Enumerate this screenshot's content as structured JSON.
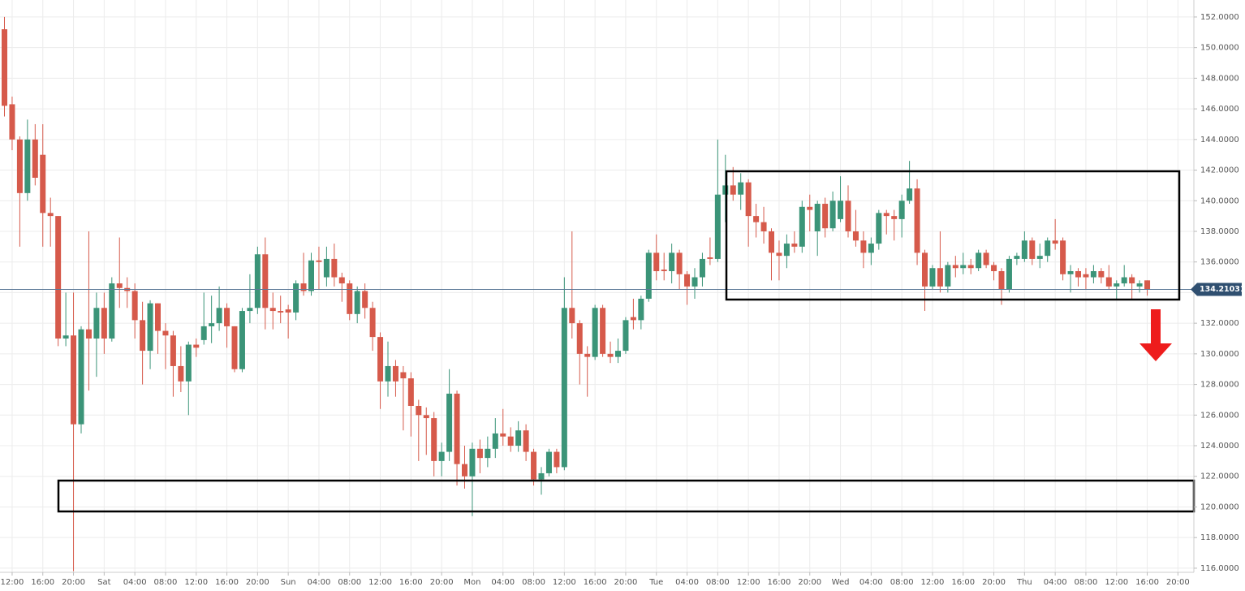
{
  "chart_data": {
    "type": "candlestick",
    "categories": [
      null,
      "12:00",
      null,
      null,
      null,
      "16:00",
      null,
      null,
      null,
      "20:00",
      null,
      null,
      null,
      "Sat",
      null,
      null,
      null,
      "04:00",
      null,
      null,
      null,
      "08:00",
      null,
      null,
      null,
      "12:00",
      null,
      null,
      null,
      "16:00",
      null,
      null,
      null,
      "20:00",
      null,
      null,
      null,
      "Sun",
      null,
      null,
      null,
      "04:00",
      null,
      null,
      null,
      "08:00",
      null,
      null,
      null,
      "12:00",
      null,
      null,
      null,
      "16:00",
      null,
      null,
      null,
      "20:00",
      null,
      null,
      null,
      "Mon",
      null,
      null,
      null,
      "04:00",
      null,
      null,
      null,
      "08:00",
      null,
      null,
      null,
      "12:00",
      null,
      null,
      null,
      "16:00",
      null,
      null,
      null,
      "20:00",
      null,
      null,
      null,
      "Tue",
      null,
      null,
      null,
      "04:00",
      null,
      null,
      null,
      "08:00",
      null,
      null,
      null,
      "12:00",
      null,
      null,
      null,
      "16:00",
      null,
      null,
      null,
      "20:00",
      null,
      null,
      null,
      "Wed",
      null,
      null,
      null,
      "04:00",
      null,
      null,
      null,
      "08:00",
      null,
      null,
      null,
      "12:00",
      null,
      null,
      null,
      "16:00",
      null,
      null,
      null,
      "20:00",
      null,
      null,
      null,
      "Thu",
      null,
      null,
      null,
      "04:00",
      null,
      null,
      null,
      "08:00",
      null,
      null,
      null,
      "12:00",
      null,
      null,
      null,
      "16:00",
      null,
      null,
      null,
      "20:00"
    ],
    "open": [
      151.2,
      146.3,
      144.0,
      140.5,
      144.0,
      143.0,
      139.2,
      139.0,
      131.0,
      131.2,
      125.4,
      131.6,
      131.0,
      133.0,
      131.0,
      134.6,
      134.3,
      134.1,
      132.2,
      130.2,
      133.3,
      131.5,
      131.2,
      129.2,
      128.2,
      130.6,
      130.9,
      131.8,
      132.0,
      133.0,
      131.8,
      129.0,
      132.8,
      133.0,
      136.5,
      133.0,
      132.8,
      132.9,
      132.7,
      134.6,
      134.1,
      136.1,
      135.0,
      136.2,
      135.0,
      134.6,
      132.6,
      134.1,
      133.0,
      131.1,
      128.2,
      129.2,
      128.8,
      128.4,
      126.6,
      126.0,
      125.8,
      123.0,
      123.6,
      127.4,
      122.8,
      122.0,
      123.8,
      123.2,
      123.8,
      124.8,
      124.6,
      124.0,
      125.0,
      123.6,
      121.8,
      122.2,
      123.6,
      122.6,
      133.0,
      132.0,
      130.0,
      129.8,
      133.0,
      130.0,
      129.8,
      130.2,
      132.4,
      132.2,
      133.6,
      136.6,
      135.5,
      135.4,
      136.6,
      135.2,
      134.4,
      135.0,
      136.3,
      136.2,
      140.4,
      141.0,
      140.4,
      141.2,
      139.0,
      138.6,
      138.0,
      136.6,
      136.4,
      137.2,
      137.0,
      139.6,
      138.0,
      139.8,
      138.2,
      138.8,
      140.0,
      138.0,
      137.4,
      136.6,
      137.2,
      139.2,
      139.0,
      138.8,
      140.0,
      140.8,
      136.6,
      134.4,
      135.6,
      134.4,
      135.8,
      135.6,
      135.8,
      135.6,
      136.6,
      135.8,
      135.4,
      134.2,
      136.2,
      136.2,
      137.4,
      136.2,
      136.4,
      137.4,
      137.4,
      135.2,
      135.4,
      135.2,
      135.0,
      135.4,
      135.0,
      134.4,
      134.6,
      135.0,
      134.4,
      134.8,
      null,
      null,
      null,
      null
    ],
    "high": [
      152.0,
      146.8,
      144.2,
      145.3,
      145.0,
      145.0,
      140.2,
      139.0,
      134.0,
      134.0,
      131.8,
      138.0,
      134.0,
      134.0,
      135.0,
      137.6,
      135.0,
      134.6,
      133.4,
      133.5,
      133.3,
      132.0,
      131.5,
      130.5,
      130.8,
      131.0,
      134.0,
      133.8,
      134.4,
      133.3,
      131.8,
      133.0,
      135.2,
      137.0,
      137.6,
      134.0,
      133.8,
      133.2,
      134.8,
      136.6,
      136.6,
      137.0,
      137.0,
      137.2,
      135.3,
      134.8,
      134.4,
      134.6,
      133.4,
      131.4,
      130.8,
      129.6,
      129.2,
      128.8,
      127.0,
      126.5,
      126.2,
      124.2,
      129.0,
      127.6,
      124.0,
      124.2,
      124.4,
      124.6,
      125.8,
      126.4,
      125.2,
      125.6,
      125.4,
      123.8,
      122.6,
      123.8,
      123.8,
      135.0,
      138.0,
      132.2,
      130.5,
      133.2,
      133.2,
      130.8,
      131.0,
      132.4,
      133.6,
      133.8,
      136.8,
      137.8,
      136.6,
      137.2,
      136.8,
      135.4,
      135.6,
      136.6,
      137.6,
      144.0,
      143.0,
      142.2,
      141.8,
      141.4,
      139.8,
      139.6,
      138.2,
      137.4,
      137.8,
      138.0,
      140.0,
      140.4,
      140.0,
      140.2,
      140.6,
      141.6,
      141.0,
      139.4,
      138.0,
      137.6,
      139.4,
      139.4,
      139.4,
      140.4,
      142.6,
      141.4,
      136.8,
      135.8,
      138.0,
      136.0,
      136.4,
      136.6,
      136.2,
      136.8,
      136.8,
      136.0,
      135.6,
      136.4,
      136.6,
      138.0,
      137.6,
      137.2,
      137.6,
      138.8,
      137.6,
      135.8,
      135.6,
      135.6,
      135.8,
      135.6,
      135.8,
      134.8,
      135.8,
      135.2,
      134.8,
      134.8,
      null,
      null,
      null,
      null
    ],
    "low": [
      145.5,
      143.3,
      137.0,
      140.0,
      141.0,
      137.0,
      137.0,
      130.5,
      130.5,
      115.8,
      124.8,
      127.6,
      128.5,
      130.0,
      130.8,
      133.0,
      133.0,
      131.0,
      128.0,
      129.0,
      130.0,
      129.0,
      127.2,
      127.5,
      126.0,
      129.8,
      130.6,
      130.7,
      131.5,
      130.4,
      128.8,
      128.8,
      132.0,
      132.6,
      131.6,
      131.6,
      132.0,
      131.0,
      132.2,
      133.8,
      133.8,
      134.2,
      134.4,
      134.4,
      133.4,
      132.2,
      132.0,
      132.3,
      130.2,
      126.4,
      127.2,
      127.2,
      125.0,
      124.6,
      123.0,
      123.4,
      122.0,
      122.0,
      123.0,
      121.4,
      121.2,
      119.4,
      122.2,
      122.6,
      123.2,
      124.0,
      123.6,
      123.6,
      123.0,
      121.4,
      120.8,
      122.0,
      122.2,
      122.4,
      131.0,
      128.0,
      127.2,
      129.6,
      129.8,
      129.4,
      129.4,
      130.0,
      131.6,
      131.6,
      133.4,
      134.8,
      134.8,
      134.6,
      134.2,
      133.2,
      133.6,
      134.4,
      135.8,
      136.0,
      138.6,
      140.0,
      139.4,
      137.0,
      137.6,
      137.2,
      134.8,
      134.8,
      135.6,
      136.6,
      136.6,
      138.0,
      136.4,
      137.6,
      138.0,
      138.6,
      137.6,
      137.0,
      135.6,
      135.8,
      136.8,
      137.8,
      137.4,
      137.6,
      139.8,
      135.8,
      132.8,
      134.2,
      134.0,
      134.0,
      135.0,
      135.2,
      135.2,
      135.4,
      135.6,
      134.8,
      133.2,
      134.0,
      135.8,
      136.0,
      135.8,
      135.6,
      136.0,
      136.8,
      134.8,
      134.0,
      134.4,
      134.2,
      134.6,
      134.6,
      134.2,
      133.6,
      134.4,
      133.6,
      134.0,
      133.8,
      null,
      null,
      null,
      null
    ],
    "close": [
      146.2,
      144.0,
      140.5,
      144.0,
      141.5,
      139.2,
      139.0,
      131.0,
      131.2,
      125.4,
      131.6,
      131.0,
      133.0,
      131.0,
      134.6,
      134.3,
      134.1,
      132.2,
      130.2,
      133.3,
      131.5,
      131.2,
      129.2,
      128.2,
      130.6,
      130.4,
      131.8,
      132.0,
      133.0,
      131.8,
      129.0,
      132.8,
      133.0,
      136.5,
      133.0,
      132.8,
      132.7,
      132.7,
      134.6,
      134.1,
      136.1,
      136.0,
      136.2,
      135.0,
      134.6,
      132.6,
      134.1,
      133.0,
      131.1,
      128.2,
      129.2,
      128.2,
      128.4,
      126.6,
      126.0,
      125.8,
      123.0,
      123.6,
      127.4,
      122.8,
      122.0,
      123.8,
      123.2,
      123.8,
      124.8,
      124.6,
      124.0,
      125.0,
      123.6,
      121.8,
      122.2,
      123.6,
      122.6,
      133.0,
      132.0,
      130.0,
      129.8,
      133.0,
      130.0,
      129.8,
      130.2,
      132.2,
      132.2,
      133.6,
      136.6,
      135.4,
      135.4,
      136.6,
      135.2,
      134.4,
      135.0,
      136.2,
      136.2,
      140.4,
      141.0,
      140.4,
      141.2,
      139.0,
      138.6,
      138.0,
      136.6,
      136.4,
      137.2,
      137.0,
      139.6,
      139.4,
      139.8,
      138.2,
      140.0,
      140.0,
      138.0,
      137.4,
      136.6,
      137.2,
      139.2,
      139.0,
      138.8,
      140.0,
      140.8,
      136.6,
      134.4,
      135.6,
      134.4,
      135.8,
      135.6,
      135.8,
      135.6,
      136.6,
      135.8,
      135.4,
      134.2,
      136.2,
      136.4,
      137.4,
      136.2,
      136.4,
      137.4,
      137.2,
      135.2,
      135.4,
      135.0,
      135.0,
      135.4,
      135.0,
      134.4,
      134.6,
      135.0,
      134.6,
      134.6,
      134.21,
      null,
      null,
      null,
      null
    ],
    "up_color": "#3b9478",
    "down_color": "#d65a4b",
    "ylim": [
      115.73,
      153.11
    ],
    "yticks": [
      {
        "value": 116,
        "label": "116.0000"
      },
      {
        "value": 118,
        "label": "118.0000"
      },
      {
        "value": 120,
        "label": "120.0000"
      },
      {
        "value": 122,
        "label": "122.0000"
      },
      {
        "value": 124,
        "label": "124.0000"
      },
      {
        "value": 126,
        "label": "126.0000"
      },
      {
        "value": 128,
        "label": "128.0000"
      },
      {
        "value": 130,
        "label": "130.0000"
      },
      {
        "value": 132,
        "label": "132.0000"
      },
      {
        "value": 134,
        "label": "134.0000"
      },
      {
        "value": 136,
        "label": "136.0000"
      },
      {
        "value": 138,
        "label": "138.0000"
      },
      {
        "value": 140,
        "label": "140.0000"
      },
      {
        "value": 142,
        "label": "142.0000"
      },
      {
        "value": 144,
        "label": "144.0000"
      },
      {
        "value": 146,
        "label": "146.0000"
      },
      {
        "value": 148,
        "label": "148.0000"
      },
      {
        "value": 150,
        "label": "150.0000"
      },
      {
        "value": 152,
        "label": "152.0000"
      }
    ],
    "last_price": 134.21031,
    "grid": true
  }
}
